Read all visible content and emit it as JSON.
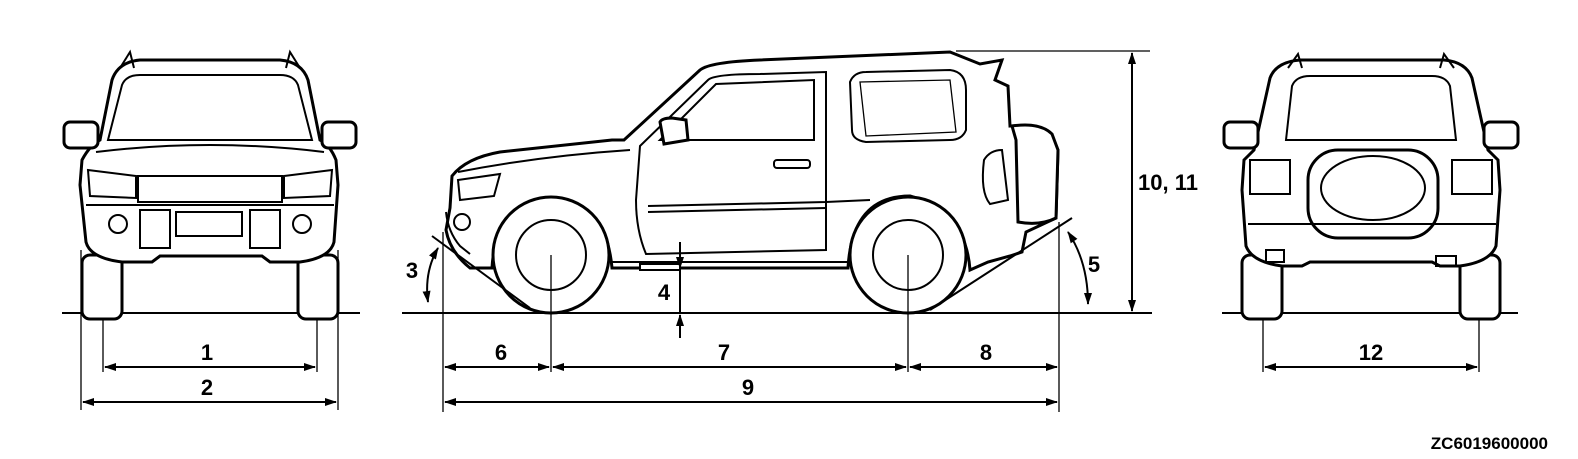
{
  "labels": {
    "front_track": "1",
    "overall_width": "2",
    "approach_angle": "3",
    "ground_clearance": "4",
    "departure_angle": "5",
    "front_overhang": "6",
    "wheelbase": "7",
    "rear_overhang": "8",
    "overall_length": "9",
    "overall_height": "10, 11",
    "rear_track": "12"
  },
  "figure_code": "ZC6019600000",
  "views": [
    "front-view",
    "side-view",
    "rear-view"
  ],
  "icons": [
    "arrow-head"
  ]
}
